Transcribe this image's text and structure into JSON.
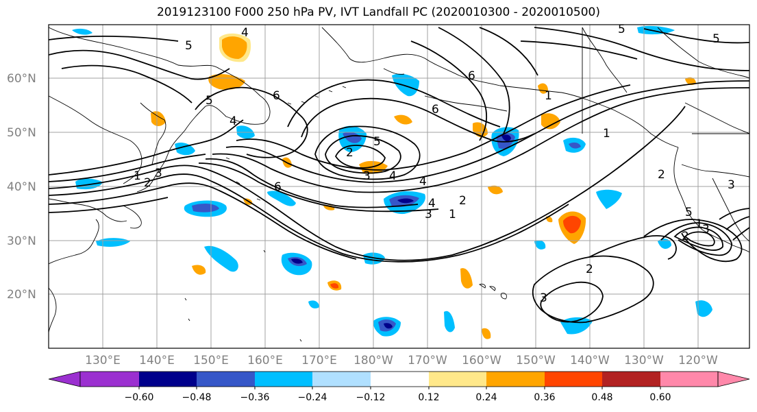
{
  "title": "2019123100 F000 250 hPa PV, IVT Landfall PC (2020010300 - 2020010500)",
  "map": {
    "lat_labels": [
      "60°N",
      "50°N",
      "40°N",
      "30°N",
      "20°N"
    ],
    "lon_labels": [
      "130°E",
      "140°E",
      "150°E",
      "160°E",
      "170°E",
      "180°W",
      "170°W",
      "160°W",
      "150°W",
      "140°W",
      "130°W",
      "120°W"
    ],
    "contour_labels": [
      "1",
      "2",
      "3",
      "4",
      "5",
      "6",
      "2",
      "3",
      "4",
      "5",
      "1",
      "2",
      "3",
      "4",
      "5",
      "6",
      "2",
      "3",
      "1",
      "4",
      "5",
      "6",
      "5",
      "4",
      "1",
      "2",
      "3",
      "6",
      "5",
      "1",
      "2",
      "3"
    ]
  },
  "colorbar": {
    "ticks": [
      "−0.60",
      "−0.48",
      "−0.36",
      "−0.24",
      "−0.12",
      "0.12",
      "0.24",
      "0.36",
      "0.48",
      "0.60"
    ],
    "colors": [
      "#9b30d0",
      "#00008b",
      "#3657c8",
      "#00bfff",
      "#b0e0ff",
      "#ffffff",
      "#ffe88a",
      "#ffa500",
      "#ff4500",
      "#b22222",
      "#ff88aa"
    ]
  },
  "colors": {
    "contour": "#000000",
    "grid": "#a0a0a0",
    "coast": "#000000"
  }
}
